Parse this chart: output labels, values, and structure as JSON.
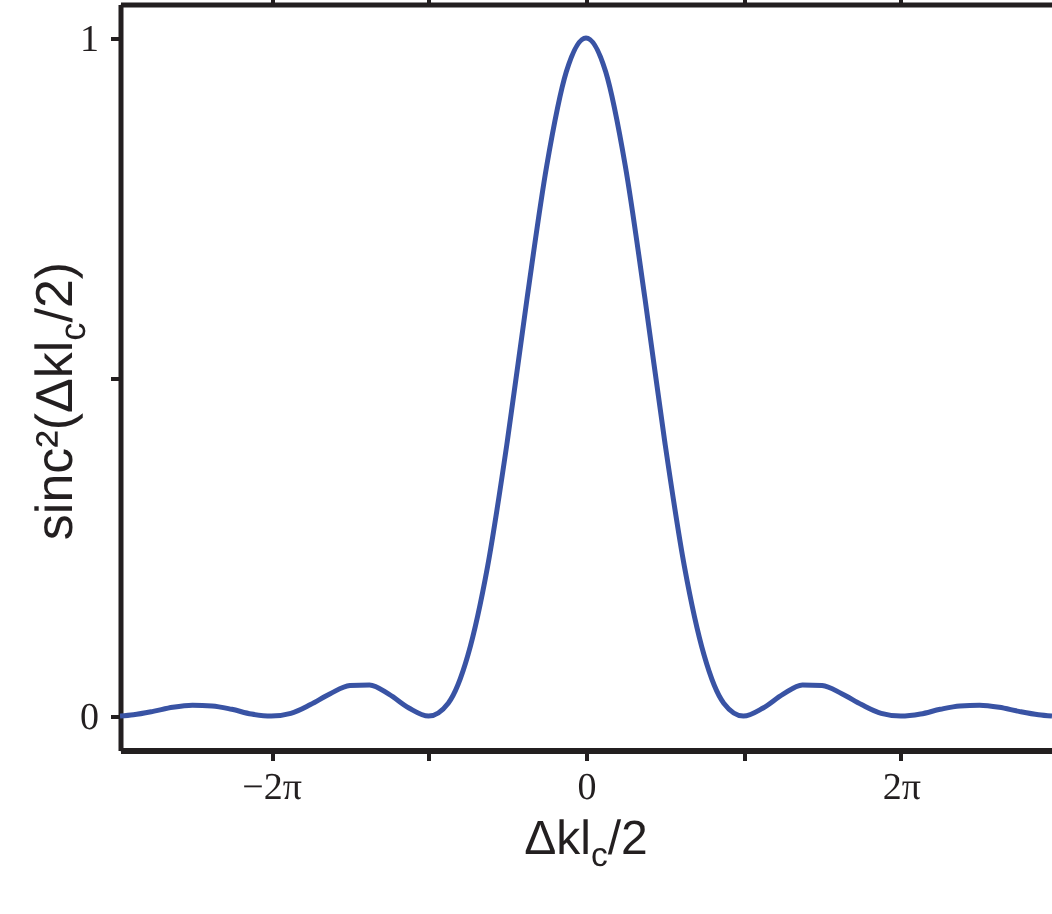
{
  "chart_data": {
    "type": "line",
    "xlabel": "Δkl$_{c}$/2",
    "ylabel": "sinc²(Δkl$_{c}$/2)",
    "x": [
      -9.3,
      -9.032,
      -8.639,
      -8.247,
      -7.854,
      -7.461,
      -7.069,
      -6.676,
      -6.283,
      -5.891,
      -5.498,
      -5.105,
      -4.712,
      -4.32,
      -3.927,
      -3.534,
      -3.142,
      -2.749,
      -2.356,
      -1.963,
      -1.571,
      -1.178,
      -0.785,
      -0.393,
      0,
      0.393,
      0.785,
      1.178,
      1.571,
      1.963,
      2.356,
      2.749,
      3.142,
      3.534,
      3.927,
      4.32,
      4.712,
      5.105,
      5.498,
      5.891,
      6.283,
      6.676,
      7.069,
      7.461,
      7.854,
      8.247,
      8.639,
      9.032,
      9.3
    ],
    "series": [
      {
        "color": "#3953a4",
        "values": [
          0,
          0.002,
          0.007,
          0.013,
          0.016,
          0.015,
          0.01,
          0.003,
          0,
          0.004,
          0.017,
          0.033,
          0.045,
          0.046,
          0.032,
          0.012,
          0,
          0.019,
          0.09,
          0.221,
          0.405,
          0.615,
          0.811,
          0.95,
          1,
          0.95,
          0.811,
          0.615,
          0.405,
          0.221,
          0.09,
          0.019,
          0,
          0.012,
          0.032,
          0.046,
          0.045,
          0.033,
          0.017,
          0.004,
          0,
          0.003,
          0.01,
          0.015,
          0.016,
          0.013,
          0.007,
          0.002,
          0
        ]
      }
    ],
    "xlim": [
      -9.3,
      9.3
    ],
    "ylim": [
      -0.05,
      1.05
    ],
    "xticks": [
      {
        "value": -6.283,
        "label": "−2π"
      },
      {
        "value": -3.142,
        "label": null
      },
      0,
      {
        "value": 3.142,
        "label": null
      },
      {
        "value": 6.283,
        "label": "2π"
      }
    ],
    "yticks": [
      0,
      {
        "value": 0.5,
        "label": null
      },
      1
    ],
    "grid": false,
    "marker": "none",
    "line_style": "solid"
  }
}
